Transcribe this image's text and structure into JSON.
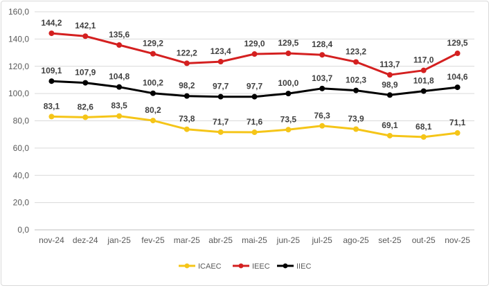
{
  "chart_data": {
    "type": "line",
    "categories": [
      "nov-24",
      "dez-24",
      "jan-25",
      "fev-25",
      "mar-25",
      "abr-25",
      "mai-25",
      "jun-25",
      "jul-25",
      "ago-25",
      "set-25",
      "out-25",
      "nov-25"
    ],
    "series": [
      {
        "name": "ICAEC",
        "color": "#f5c518",
        "values": [
          83.1,
          82.6,
          83.5,
          80.2,
          73.8,
          71.7,
          71.6,
          73.5,
          76.3,
          73.9,
          69.1,
          68.1,
          71.1
        ],
        "labels": [
          "83,1",
          "82,6",
          "83,5",
          "80,2",
          "73,8",
          "71,7",
          "71,6",
          "73,5",
          "76,3",
          "73,9",
          "69,1",
          "68,1",
          "71,1"
        ]
      },
      {
        "name": "IEEC",
        "color": "#d42020",
        "values": [
          144.2,
          142.1,
          135.6,
          129.2,
          122.2,
          123.4,
          129.0,
          129.5,
          128.4,
          123.2,
          113.7,
          117.0,
          129.5
        ],
        "labels": [
          "144,2",
          "142,1",
          "135,6",
          "129,2",
          "122,2",
          "123,4",
          "129,0",
          "129,5",
          "128,4",
          "123,2",
          "113,7",
          "117,0",
          "129,5"
        ]
      },
      {
        "name": "IIEC",
        "color": "#000000",
        "values": [
          109.1,
          107.9,
          104.8,
          100.2,
          98.2,
          97.7,
          97.7,
          100.0,
          103.7,
          102.3,
          98.9,
          101.8,
          104.6
        ],
        "labels": [
          "109,1",
          "107,9",
          "104,8",
          "100,2",
          "98,2",
          "97,7",
          "97,7",
          "100,0",
          "103,7",
          "102,3",
          "98,9",
          "101,8",
          "104,6"
        ]
      }
    ],
    "y_ticks": [
      "0,0",
      "20,0",
      "40,0",
      "60,0",
      "80,0",
      "100,0",
      "120,0",
      "140,0",
      "160,0"
    ],
    "ylim": [
      0,
      160
    ],
    "grid": true,
    "legend": "bottom"
  }
}
